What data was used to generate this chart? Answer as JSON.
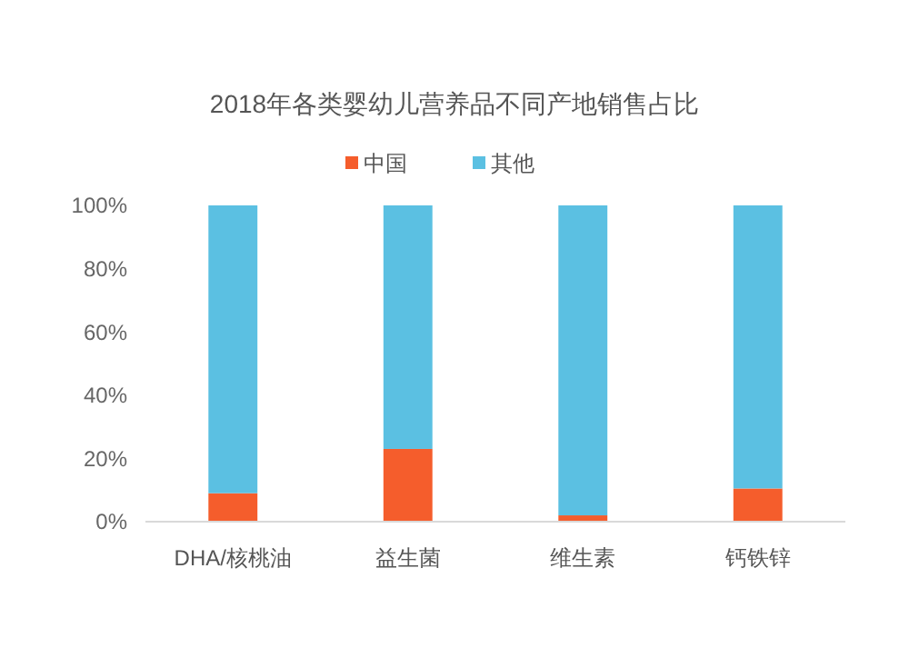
{
  "chart_data": {
    "type": "bar",
    "title": "2018年各类婴幼儿营养品不同产地销售占比",
    "categories": [
      "DHA/核桃油",
      "益生菌",
      "维生素",
      "钙铁锌"
    ],
    "stacked": true,
    "legend": "top",
    "grid": false,
    "series": [
      {
        "name": "中国",
        "color": "#f55d2c",
        "values": [
          9,
          23,
          2,
          10.5
        ]
      },
      {
        "name": "其他",
        "color": "#5bc0e2",
        "values": [
          91,
          77,
          98,
          89.5
        ]
      }
    ],
    "ylim": [
      0,
      100
    ],
    "yticks": [
      {
        "value": 0,
        "label": "0%"
      },
      {
        "value": 20,
        "label": "20%"
      },
      {
        "value": 40,
        "label": "40%"
      },
      {
        "value": 60,
        "label": "60%"
      },
      {
        "value": 80,
        "label": "80%"
      },
      {
        "value": 100,
        "label": "100%"
      }
    ]
  }
}
